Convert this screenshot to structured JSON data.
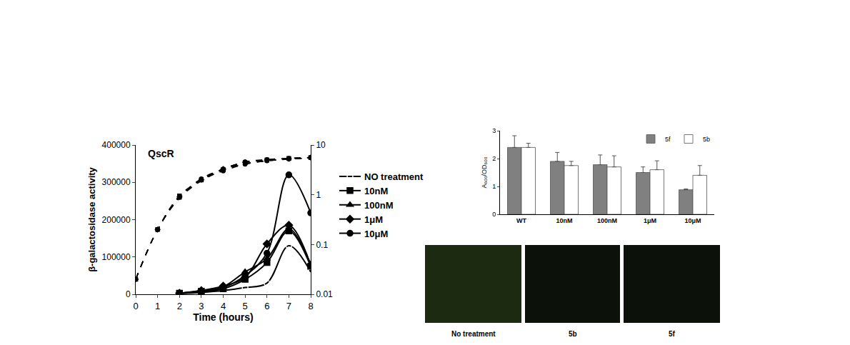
{
  "chart_data": [
    {
      "type": "line",
      "title": "QscR",
      "xlabel": "Time (hours)",
      "ylabel": "β-galactosidase activity",
      "xlim": [
        0,
        8
      ],
      "xticks": [
        0,
        1,
        2,
        3,
        4,
        5,
        6,
        7,
        8
      ],
      "ylim": [
        0,
        400000
      ],
      "yticks": [
        0,
        100000,
        200000,
        300000,
        400000
      ],
      "y2lim": [
        0.01,
        10
      ],
      "y2ticks": [
        0.01,
        0.1,
        1,
        10
      ],
      "log": "y2",
      "grid": false,
      "legend": "right",
      "series": [
        {
          "name": "NO treatment",
          "color": "#000000",
          "marker": "circle-open",
          "line_style": "solid",
          "x": [
            2,
            3,
            4,
            5,
            6,
            7,
            8
          ],
          "values": [
            2000,
            5000,
            10000,
            18000,
            30000,
            130000,
            60000
          ]
        },
        {
          "name": "10nM",
          "color": "#000000",
          "marker": "square",
          "line_style": "solid",
          "x": [
            2,
            3,
            4,
            5,
            6,
            7,
            8
          ],
          "values": [
            3000,
            8000,
            15000,
            40000,
            85000,
            170000,
            75000
          ]
        },
        {
          "name": "100nM",
          "color": "#000000",
          "marker": "triangle-up",
          "line_style": "solid",
          "x": [
            2,
            3,
            4,
            5,
            6,
            7,
            8
          ],
          "values": [
            2000,
            8000,
            20000,
            60000,
            95000,
            175000,
            80000
          ]
        },
        {
          "name": "1μM",
          "color": "#000000",
          "marker": "diamond",
          "line_style": "solid",
          "x": [
            2,
            3,
            4,
            5,
            6,
            7,
            8
          ],
          "values": [
            3000,
            10000,
            22000,
            45000,
            135000,
            185000,
            78000
          ]
        },
        {
          "name": "10μM",
          "color": "#000000",
          "marker": "circle",
          "line_style": "solid",
          "x": [
            2,
            3,
            4,
            5,
            6,
            7,
            8
          ],
          "values": [
            3000,
            8000,
            18000,
            50000,
            110000,
            320000,
            218000
          ]
        },
        {
          "name": "NO treatment",
          "axis": "y2",
          "color": "#000000",
          "marker": "circle",
          "line_style": "dashed",
          "x": [
            0,
            1,
            2,
            3,
            4,
            5,
            6,
            7,
            8
          ],
          "values": [
            0.02,
            0.2,
            0.9,
            2.1,
            3.3,
            4.6,
            5.1,
            5.4,
            5.6
          ]
        },
        {
          "name": "10nM",
          "axis": "y2",
          "color": "#000000",
          "marker": "square",
          "line_style": "dashed",
          "x": [
            0,
            1,
            2,
            3,
            4,
            5,
            6,
            7,
            8
          ],
          "values": [
            0.02,
            0.2,
            0.95,
            2.0,
            3.2,
            4.4,
            5.0,
            5.4,
            5.6
          ]
        },
        {
          "name": "100nM",
          "axis": "y2",
          "color": "#000000",
          "marker": "triangle-up",
          "line_style": "dashed",
          "x": [
            0,
            1,
            2,
            3,
            4,
            5,
            6,
            7,
            8
          ],
          "values": [
            0.02,
            0.2,
            0.85,
            1.9,
            3.1,
            4.2,
            4.8,
            5.2,
            5.5
          ]
        },
        {
          "name": "1μM",
          "axis": "y2",
          "color": "#000000",
          "marker": "diamond",
          "line_style": "dashed",
          "x": [
            0,
            1,
            2,
            3,
            4,
            5,
            6,
            7,
            8
          ],
          "values": [
            0.02,
            0.2,
            0.9,
            2.0,
            3.3,
            4.5,
            5.0,
            5.3,
            5.6
          ]
        },
        {
          "name": "10μM",
          "axis": "y2",
          "color": "#000000",
          "marker": "circle",
          "line_style": "dashed",
          "x": [
            0,
            1,
            2,
            3,
            4,
            5,
            6,
            7,
            8
          ],
          "values": [
            0.02,
            0.2,
            0.9,
            2.0,
            3.0,
            4.1,
            4.8,
            5.2,
            5.5
          ]
        }
      ]
    },
    {
      "type": "bar",
      "ylabel": "A₆₀₀/OD₆₀₀",
      "categories": [
        "WT",
        "10nM",
        "100nM",
        "1μM",
        "10μM"
      ],
      "ylim": [
        0,
        3
      ],
      "yticks": [
        0,
        1,
        2,
        3
      ],
      "grid": false,
      "legend": "upper right",
      "series": [
        {
          "name": "5f",
          "color": "#808080",
          "values": [
            2.4,
            1.9,
            1.78,
            1.5,
            0.88
          ],
          "errors": [
            0.42,
            0.32,
            0.35,
            0.2,
            0.03
          ]
        },
        {
          "name": "5b",
          "color": "#ffffff",
          "values": [
            2.4,
            1.75,
            1.7,
            1.6,
            1.4
          ],
          "errors": [
            0.15,
            0.15,
            0.4,
            0.32,
            0.35
          ]
        }
      ]
    }
  ],
  "micrographs": {
    "labels": [
      "No treatment",
      "5b",
      "5f"
    ]
  }
}
